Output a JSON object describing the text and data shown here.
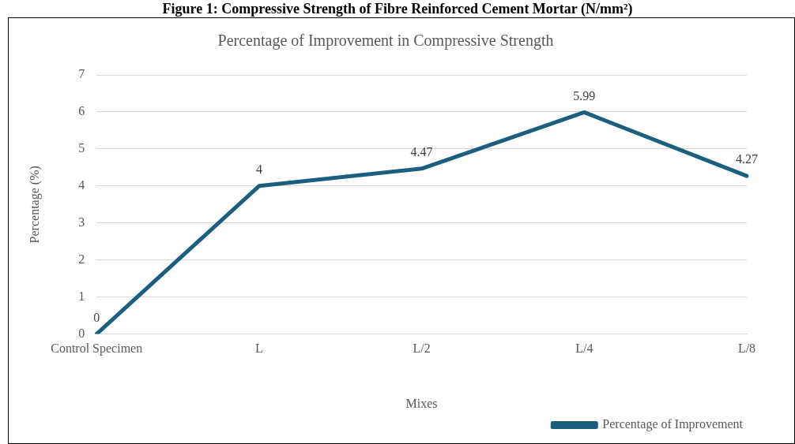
{
  "chart_data": {
    "type": "line",
    "title": "Percentage of Improvement in Compressive Strength",
    "xlabel": "Mixes",
    "ylabel": "Percentage (%)",
    "annotations": [
      "Figure 1: Compressive Strength of Fibre Reinforced Cement Mortar (N/mm²)"
    ],
    "categories": [
      "Control Specimen",
      "L",
      "L/2",
      "L/4",
      "L/8"
    ],
    "series": [
      {
        "name": "Percentage of Improvement",
        "color": "#1b5e7e",
        "values": [
          0,
          4,
          4.47,
          5.99,
          4.27
        ]
      }
    ],
    "ylim": [
      0,
      7
    ],
    "yticks": [
      0,
      1,
      2,
      3,
      4,
      5,
      6,
      7
    ],
    "grid": "y",
    "legend": "bottom right",
    "data_labels": true,
    "marker": "none",
    "line_style": "solid"
  }
}
